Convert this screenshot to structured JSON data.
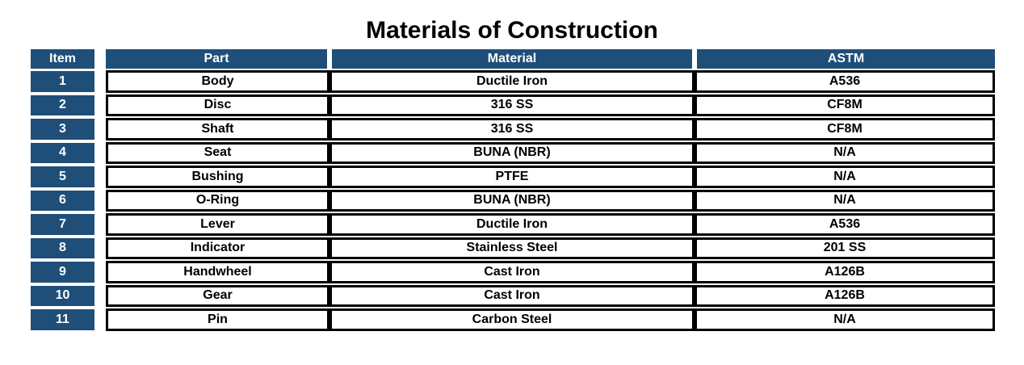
{
  "title": "Materials of Construction",
  "colors": {
    "header_bg": "#1F4E79",
    "header_text": "#FFFFFF",
    "border": "#000000",
    "cell_text": "#000000",
    "page_bg": "#FFFFFF"
  },
  "table": {
    "columns": [
      "Item",
      "Part",
      "Material",
      "ASTM"
    ],
    "rows": [
      {
        "item": "1",
        "part": "Body",
        "material": "Ductile Iron",
        "astm": "A536"
      },
      {
        "item": "2",
        "part": "Disc",
        "material": "316 SS",
        "astm": "CF8M"
      },
      {
        "item": "3",
        "part": "Shaft",
        "material": "316 SS",
        "astm": "CF8M"
      },
      {
        "item": "4",
        "part": "Seat",
        "material": "BUNA (NBR)",
        "astm": "N/A"
      },
      {
        "item": "5",
        "part": "Bushing",
        "material": "PTFE",
        "astm": "N/A"
      },
      {
        "item": "6",
        "part": "O-Ring",
        "material": "BUNA (NBR)",
        "astm": "N/A"
      },
      {
        "item": "7",
        "part": "Lever",
        "material": "Ductile Iron",
        "astm": "A536"
      },
      {
        "item": "8",
        "part": "Indicator",
        "material": "Stainless Steel",
        "astm": "201 SS"
      },
      {
        "item": "9",
        "part": "Handwheel",
        "material": "Cast Iron",
        "astm": "A126B"
      },
      {
        "item": "10",
        "part": "Gear",
        "material": "Cast Iron",
        "astm": "A126B"
      },
      {
        "item": "11",
        "part": "Pin",
        "material": "Carbon Steel",
        "astm": "N/A"
      }
    ]
  }
}
